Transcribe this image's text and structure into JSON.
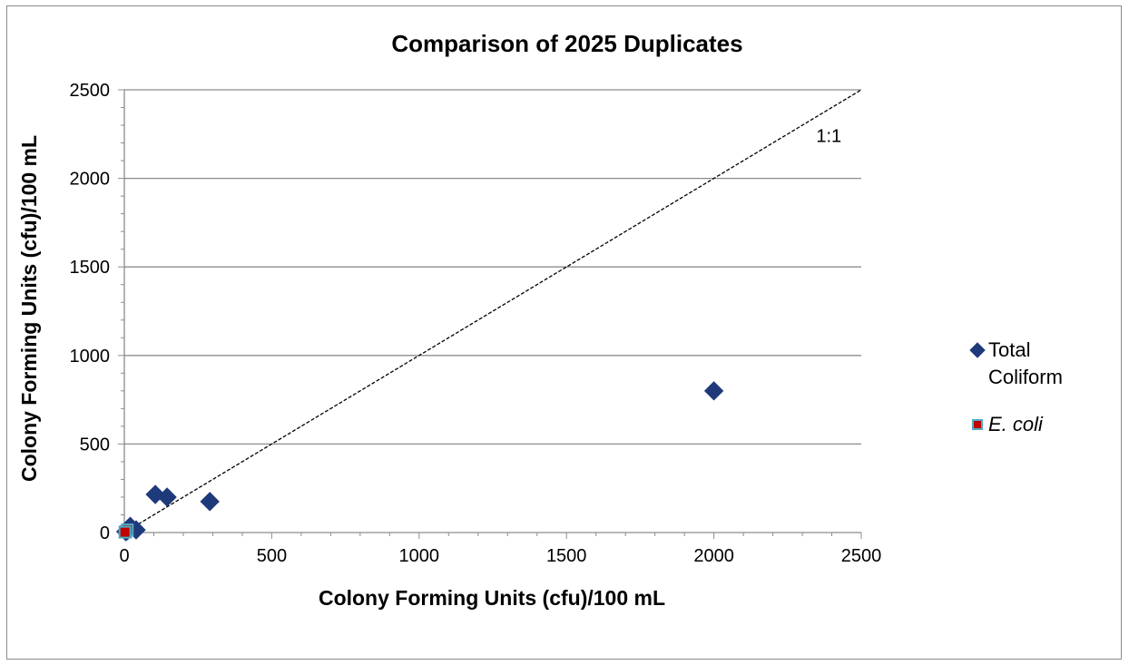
{
  "chart_data": {
    "type": "scatter",
    "title": "Comparison of 2025 Duplicates",
    "xlabel": "Colony Forming Units (cfu)/100 mL",
    "ylabel": "Colony Forming Units (cfu)/100 mL",
    "xlim": [
      0,
      2500
    ],
    "ylim": [
      0,
      2500
    ],
    "xticks": [
      0,
      500,
      1000,
      1500,
      2000,
      2500
    ],
    "yticks": [
      0,
      500,
      1000,
      1500,
      2000,
      2500
    ],
    "xtick_labels": [
      "0",
      "500",
      "1000",
      "1500",
      "2000",
      "2500"
    ],
    "ytick_labels": [
      "0",
      "500",
      "1000",
      "1500",
      "2000",
      "2500"
    ],
    "grid": "horizontal",
    "legend_position": "right",
    "series": [
      {
        "name": "Total Coliform",
        "name_lines": [
          "Total",
          "Coliform"
        ],
        "marker": "diamond",
        "color": "#1f3a7a",
        "points": [
          {
            "x": 2000,
            "y": 800
          },
          {
            "x": 290,
            "y": 175
          },
          {
            "x": 105,
            "y": 215
          },
          {
            "x": 145,
            "y": 200
          },
          {
            "x": 40,
            "y": 15
          },
          {
            "x": 20,
            "y": 35
          },
          {
            "x": 10,
            "y": 10
          },
          {
            "x": 5,
            "y": 5
          }
        ]
      },
      {
        "name": "E. coli",
        "name_lines": [
          "E. coli"
        ],
        "italic": true,
        "marker": "square",
        "color": "#c00000",
        "edge_color": "#4bacc6",
        "points": [
          {
            "x": 5,
            "y": 5
          },
          {
            "x": 10,
            "y": 15
          },
          {
            "x": 2,
            "y": 2
          }
        ]
      }
    ],
    "reference_line": {
      "label": "1:1",
      "from": [
        0,
        0
      ],
      "to": [
        2500,
        2500
      ],
      "style": "dashed",
      "color": "#000000"
    }
  }
}
